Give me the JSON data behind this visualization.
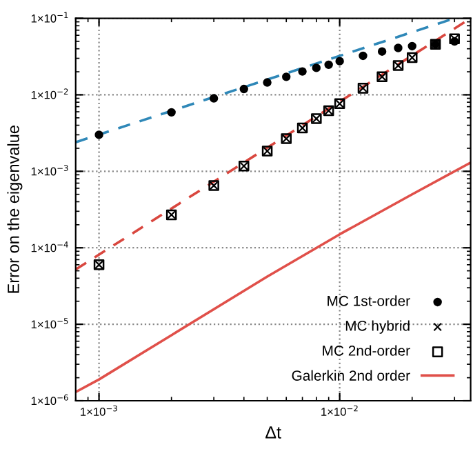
{
  "chart_data": {
    "type": "scatter",
    "xlabel": "Δt",
    "ylabel": "Error on the eigenvalue",
    "log": "xy",
    "grid": true,
    "legend": "bottom right",
    "xlim": [
      0.0008,
      0.035
    ],
    "ylim": [
      1e-06,
      0.1
    ],
    "xticks": [
      {
        "value": 0.001,
        "label": "1×10$^{−3}$"
      },
      {
        "value": 0.01,
        "label": "1×10$^{−2}$"
      }
    ],
    "yticks": [
      {
        "value": 1e-06,
        "label": "1×10$^{−6}$"
      },
      {
        "value": 1e-05,
        "label": "1×10$^{−5}$"
      },
      {
        "value": 0.0001,
        "label": "1×10$^{−4}$"
      },
      {
        "value": 0.001,
        "label": "1×10$^{−3}$"
      },
      {
        "value": 0.01,
        "label": "1×10$^{−2}$"
      },
      {
        "value": 0.1,
        "label": "1×10$^{−1}$"
      }
    ],
    "series": [
      {
        "type": "line",
        "color": "#2f88b8",
        "line_style": "dashed",
        "marker": "none",
        "x": [
          0.0008,
          0.03
        ],
        "values": [
          0.0024,
          0.1
        ]
      },
      {
        "type": "line",
        "color": "#d9473f",
        "line_style": "dashed",
        "marker": "none",
        "x": [
          0.0008,
          0.035
        ],
        "values": [
          5.2e-05,
          0.1
        ]
      },
      {
        "name": "MC 1st-order",
        "marker": "circle",
        "color": "#000000",
        "x": [
          0.001,
          0.002,
          0.003,
          0.004,
          0.005,
          0.006,
          0.007,
          0.008,
          0.009,
          0.01,
          0.0125,
          0.015,
          0.0175,
          0.02,
          0.025,
          0.03
        ],
        "values": [
          0.003,
          0.0059,
          0.009,
          0.0119,
          0.0145,
          0.0172,
          0.0202,
          0.0225,
          0.0247,
          0.0275,
          0.0323,
          0.0368,
          0.041,
          0.0432,
          0.0457,
          0.0499
        ]
      },
      {
        "name": "MC hybrid",
        "marker": "cross",
        "color": "#000000",
        "x": [
          0.001,
          0.002,
          0.003,
          0.004,
          0.005,
          0.006,
          0.007,
          0.008,
          0.009,
          0.01,
          0.0125,
          0.015,
          0.0175,
          0.02,
          0.025,
          0.03
        ],
        "values": [
          6e-05,
          0.00027,
          0.00065,
          0.00117,
          0.00184,
          0.00267,
          0.00368,
          0.00487,
          0.00619,
          0.00765,
          0.0122,
          0.0172,
          0.0241,
          0.0306,
          0.0457,
          0.054
        ]
      },
      {
        "name": "MC 2nd-order",
        "marker": "square",
        "color": "#000000",
        "x": [
          0.001,
          0.002,
          0.003,
          0.004,
          0.005,
          0.006,
          0.007,
          0.008,
          0.009,
          0.01,
          0.0125,
          0.015,
          0.0175,
          0.02,
          0.025,
          0.03
        ],
        "values": [
          6e-05,
          0.00027,
          0.00065,
          0.00117,
          0.00184,
          0.00267,
          0.00368,
          0.00487,
          0.00619,
          0.00765,
          0.0122,
          0.0172,
          0.0241,
          0.0306,
          0.0457,
          0.054
        ]
      },
      {
        "name": "Galerkin 2nd order",
        "type": "line",
        "color": "#e0504a",
        "line_style": "solid",
        "marker": "none",
        "x": [
          0.0008,
          0.001,
          0.002,
          0.005,
          0.01,
          0.02,
          0.035
        ],
        "values": [
          1.3e-06,
          1.9e-06,
          7.2e-06,
          4.2e-05,
          0.00015,
          0.0005,
          0.0013
        ]
      }
    ]
  }
}
